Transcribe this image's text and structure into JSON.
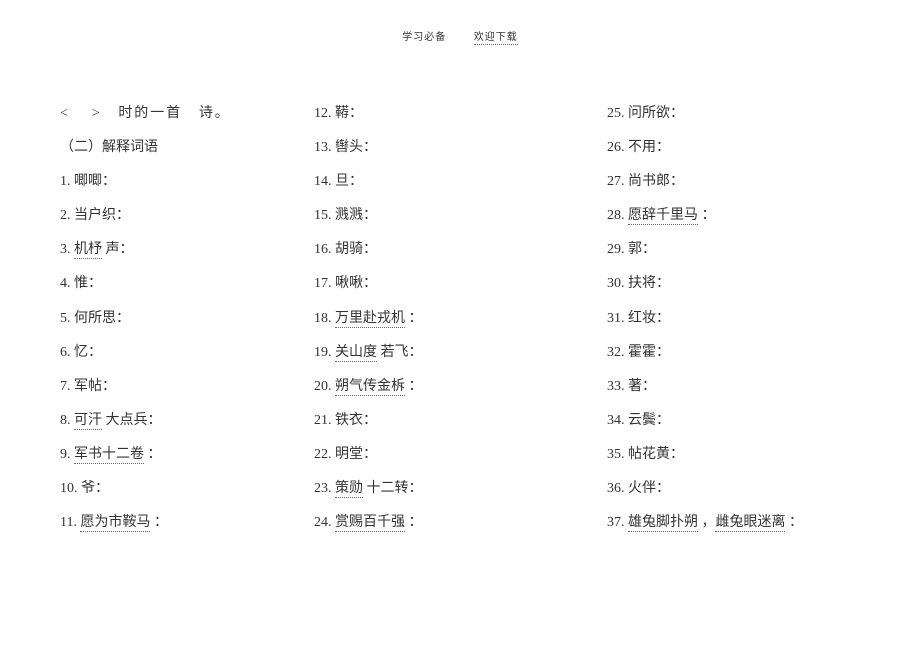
{
  "header": {
    "left": "学习必备",
    "right": "欢迎下载"
  },
  "topline": {
    "a": "<",
    "b": ">",
    "c": "时的一首",
    "d": "诗。"
  },
  "section_head": "（二）解释词语",
  "col1": [
    {
      "n": "1.",
      "t": "唧唧："
    },
    {
      "n": "2.",
      "t": "当户织："
    },
    {
      "n": "3.",
      "t": "机杼",
      "t2": " 声："
    },
    {
      "n": "4.",
      "t": "惟："
    },
    {
      "n": "5.",
      "t": "何所思："
    },
    {
      "n": "6.",
      "t": "忆："
    },
    {
      "n": "7.",
      "t": "军帖："
    },
    {
      "n": "8.",
      "t": "可汗",
      "t2": " 大点兵："
    },
    {
      "n": "9.",
      "t": "军书十二卷",
      "t2": " ："
    },
    {
      "n": "10.",
      "t": "爷："
    },
    {
      "n": "11.",
      "t": "愿为市鞍马",
      "t2": " ："
    }
  ],
  "col2": [
    {
      "n": "12.",
      "t": "鞯："
    },
    {
      "n": "13.",
      "t": "辔头："
    },
    {
      "n": "14.",
      "t": "旦："
    },
    {
      "n": "15.",
      "t": "溅溅："
    },
    {
      "n": "16.",
      "t": "胡骑："
    },
    {
      "n": "17.",
      "t": "啾啾："
    },
    {
      "n": "18.",
      "t": "万里赴戎机",
      "t2": " ："
    },
    {
      "n": "19.",
      "t": "关山度",
      "t2": " 若飞："
    },
    {
      "n": "20.",
      "t": "朔气传金柝",
      "t2": " ："
    },
    {
      "n": "21.",
      "t": "铁衣："
    },
    {
      "n": "22.",
      "t": "明堂："
    },
    {
      "n": "23.",
      "t": "策勋",
      "t2": " 十二转："
    },
    {
      "n": "24.",
      "t": "赏赐百千强",
      "t2": " ："
    }
  ],
  "col3": [
    {
      "n": "25.",
      "t": "问所欲："
    },
    {
      "n": "26.",
      "t": "不用："
    },
    {
      "n": "27.",
      "t": "尚书郎："
    },
    {
      "n": "28.",
      "t": "愿辞千里马",
      "t2": " ："
    },
    {
      "n": "29.",
      "t": "郭："
    },
    {
      "n": "30.",
      "t": "扶将："
    },
    {
      "n": "31.",
      "t": "红妆："
    },
    {
      "n": "32.",
      "t": "霍霍："
    },
    {
      "n": "33.",
      "t": "著："
    },
    {
      "n": "34.",
      "t": "云鬓："
    },
    {
      "n": "35.",
      "t": "帖花黄："
    },
    {
      "n": "36.",
      "t": "火伴："
    },
    {
      "n": "37.",
      "t": "雄兔脚扑朔",
      "t2": " ，",
      "t3": "雌兔眼迷离",
      "t4": " ："
    }
  ]
}
